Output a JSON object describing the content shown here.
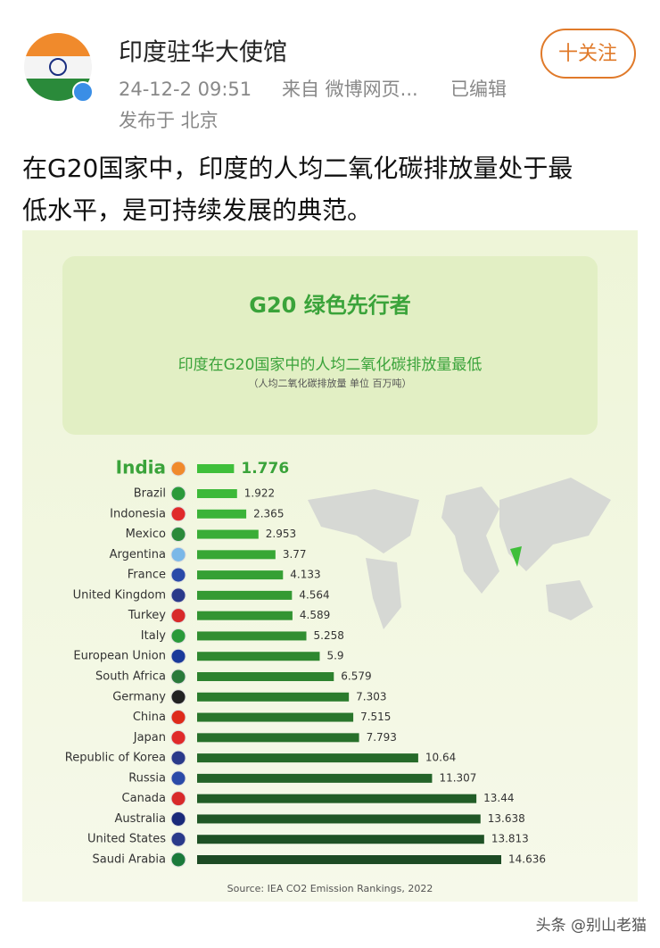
{
  "header": {
    "name": "印度驻华大使馆",
    "time": "24-12-2 09:51",
    "source": "来自 微博网页...",
    "edited": "已编辑",
    "location": "发布于 北京",
    "follow": "十关注"
  },
  "post": {
    "text_lines": [
      "在G20国家中，印度的人均二氧化碳排放量处于最",
      "低水平，是可持续发展的典范。"
    ]
  },
  "chart_data": {
    "type": "bar",
    "orientation": "horizontal",
    "title": "G20 绿色先行者",
    "subtitle": "印度在G20国家中的人均二氧化碳排放量最低",
    "note": "（人均二氧化碳排放量  单位  百万吨）",
    "source": "Source: IEA CO2 Emission Rankings, 2022",
    "categories": [
      "India",
      "Brazil",
      "Indonesia",
      "Mexico",
      "Argentina",
      "France",
      "United Kingdom",
      "Turkey",
      "Italy",
      "European Union",
      "South Africa",
      "Germany",
      "China",
      "Japan",
      "Republic of Korea",
      "Russia",
      "Canada",
      "Australia",
      "United States",
      "Saudi Arabia"
    ],
    "values": [
      1.776,
      1.922,
      2.365,
      2.953,
      3.77,
      4.133,
      4.564,
      4.589,
      5.258,
      5.9,
      6.579,
      7.303,
      7.515,
      7.793,
      10.64,
      11.307,
      13.44,
      13.638,
      13.813,
      14.636
    ],
    "color_start": "#3fbf3a",
    "color_end": "#1d4b24"
  },
  "watermark": "头条 @别山老猫"
}
